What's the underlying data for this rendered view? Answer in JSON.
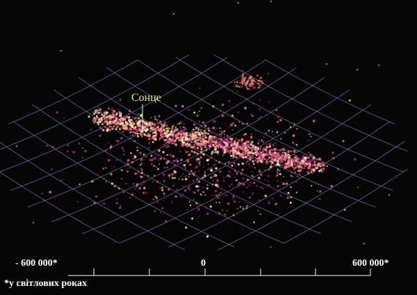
{
  "sun_label": "Сонце",
  "scale": {
    "left_label": "- 600 000*",
    "center_label": "0",
    "right_label": "600 000*"
  },
  "footnote": "*у світлових роках",
  "colors": {
    "background": "#050506",
    "grid": "#7a74b8",
    "sun_label": "#e9f37a",
    "star_palette": [
      "#ffe9b0",
      "#f7a27a",
      "#e8557a",
      "#b02a8c",
      "#6a1a7a"
    ]
  }
}
